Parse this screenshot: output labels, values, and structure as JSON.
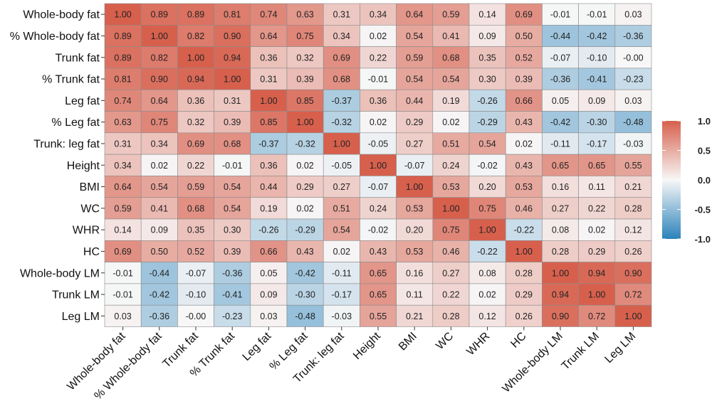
{
  "chart_data": {
    "type": "heatmap",
    "title": "",
    "xlabel": "",
    "ylabel": "",
    "rows": [
      "Whole-body fat",
      "% Whole-body fat",
      "Trunk fat",
      "% Trunk fat",
      "Leg fat",
      "% Leg fat",
      "Trunk: leg fat",
      "Height",
      "BMI",
      "WC",
      "WHR",
      "HC",
      "Whole-body LM",
      "Trunk LM",
      "Leg LM"
    ],
    "columns": [
      "Whole-body fat",
      "% Whole-body fat",
      "Trunk fat",
      "% Trunk fat",
      "Leg fat",
      "% Leg fat",
      "Trunk: leg fat",
      "Height",
      "BMI",
      "WC",
      "WHR",
      "HC",
      "Whole-body LM",
      "Trunk LM",
      "Leg LM"
    ],
    "values": [
      [
        "1.00",
        "0.89",
        "0.89",
        "0.81",
        "0.74",
        "0.63",
        "0.31",
        "0.34",
        "0.64",
        "0.59",
        "0.14",
        "0.69",
        "-0.01",
        "-0.01",
        "0.03"
      ],
      [
        "0.89",
        "1.00",
        "0.82",
        "0.90",
        "0.64",
        "0.75",
        "0.34",
        "0.02",
        "0.54",
        "0.41",
        "0.09",
        "0.50",
        "-0.44",
        "-0.42",
        "-0.36"
      ],
      [
        "0.89",
        "0.82",
        "1.00",
        "0.94",
        "0.36",
        "0.32",
        "0.69",
        "0.22",
        "0.59",
        "0.68",
        "0.35",
        "0.52",
        "-0.07",
        "-0.10",
        "-0.00"
      ],
      [
        "0.81",
        "0.90",
        "0.94",
        "1.00",
        "0.31",
        "0.39",
        "0.68",
        "-0.01",
        "0.54",
        "0.54",
        "0.30",
        "0.39",
        "-0.36",
        "-0.41",
        "-0.23"
      ],
      [
        "0.74",
        "0.64",
        "0.36",
        "0.31",
        "1.00",
        "0.85",
        "-0.37",
        "0.36",
        "0.44",
        "0.19",
        "-0.26",
        "0.66",
        "0.05",
        "0.09",
        "0.03"
      ],
      [
        "0.63",
        "0.75",
        "0.32",
        "0.39",
        "0.85",
        "1.00",
        "-0.32",
        "0.02",
        "0.29",
        "0.02",
        "-0.29",
        "0.43",
        "-0.42",
        "-0.30",
        "-0.48"
      ],
      [
        "0.31",
        "0.34",
        "0.69",
        "0.68",
        "-0.37",
        "-0.32",
        "1.00",
        "-0.05",
        "0.27",
        "0.51",
        "0.54",
        "0.02",
        "-0.11",
        "-0.17",
        "-0.03"
      ],
      [
        "0.34",
        "0.02",
        "0.22",
        "-0.01",
        "0.36",
        "0.02",
        "-0.05",
        "1.00",
        "-0.07",
        "0.24",
        "-0.02",
        "0.43",
        "0.65",
        "0.65",
        "0.55"
      ],
      [
        "0.64",
        "0.54",
        "0.59",
        "0.54",
        "0.44",
        "0.29",
        "0.27",
        "-0.07",
        "1.00",
        "0.53",
        "0.20",
        "0.53",
        "0.16",
        "0.11",
        "0.21"
      ],
      [
        "0.59",
        "0.41",
        "0.68",
        "0.54",
        "0.19",
        "0.02",
        "0.51",
        "0.24",
        "0.53",
        "1.00",
        "0.75",
        "0.46",
        "0.27",
        "0.22",
        "0.28"
      ],
      [
        "0.14",
        "0.09",
        "0.35",
        "0.30",
        "-0.26",
        "-0.29",
        "0.54",
        "-0.02",
        "0.20",
        "0.75",
        "1.00",
        "-0.22",
        "0.08",
        "0.02",
        "0.12"
      ],
      [
        "0.69",
        "0.50",
        "0.52",
        "0.39",
        "0.66",
        "0.43",
        "0.02",
        "0.43",
        "0.53",
        "0.46",
        "-0.22",
        "1.00",
        "0.28",
        "0.29",
        "0.26"
      ],
      [
        "-0.01",
        "-0.44",
        "-0.07",
        "-0.36",
        "0.05",
        "-0.42",
        "-0.11",
        "0.65",
        "0.16",
        "0.27",
        "0.08",
        "0.28",
        "1.00",
        "0.94",
        "0.90"
      ],
      [
        "-0.01",
        "-0.42",
        "-0.10",
        "-0.41",
        "0.09",
        "-0.30",
        "-0.17",
        "0.65",
        "0.11",
        "0.22",
        "0.02",
        "0.29",
        "0.94",
        "1.00",
        "0.72"
      ],
      [
        "0.03",
        "-0.36",
        "-0.00",
        "-0.23",
        "0.03",
        "-0.48",
        "-0.03",
        "0.55",
        "0.21",
        "0.28",
        "0.12",
        "0.26",
        "0.90",
        "0.72",
        "1.00"
      ]
    ],
    "value_range": [
      -1,
      1
    ],
    "colors": {
      "low": "#2b83ba",
      "mid": "#f7f7f7",
      "high": "#d7604d"
    },
    "legend": {
      "placement": "right",
      "ticks": [
        "1.0",
        "0.5",
        "0.0",
        "-0.5",
        "-1.0"
      ]
    }
  }
}
